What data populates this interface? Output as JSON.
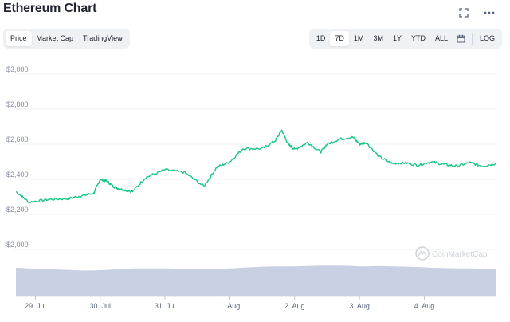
{
  "title": "Ethereum Chart",
  "icons": {
    "fullscreen": "fullscreen-icon",
    "more": "more-icon",
    "calendar": "calendar-icon"
  },
  "tabs": [
    {
      "label": "Price",
      "active": true
    },
    {
      "label": "Market Cap",
      "active": false
    },
    {
      "label": "TradingView",
      "active": false
    }
  ],
  "ranges": [
    {
      "label": "1D",
      "active": false
    },
    {
      "label": "7D",
      "active": true
    },
    {
      "label": "1M",
      "active": false
    },
    {
      "label": "3M",
      "active": false
    },
    {
      "label": "1Y",
      "active": false
    },
    {
      "label": "YTD",
      "active": false
    },
    {
      "label": "ALL",
      "active": false
    }
  ],
  "log_label": "LOG",
  "watermark": "CoinMarketCap",
  "colors": {
    "line": "#16c784",
    "volume": "#c9d0e4",
    "grid": "#eff2f5",
    "segment_bg": "#eff2f5"
  },
  "chart_data": {
    "type": "line",
    "y_ticks": [
      "$3,000",
      "$2,800",
      "$2,600",
      "$2,400",
      "$2,200",
      "$2,000"
    ],
    "ylim": [
      2000,
      3000
    ],
    "x_ticks": [
      "29. Jul",
      "30. Jul",
      "31. Jul",
      "1. Aug",
      "2. Aug",
      "3. Aug",
      "4. Aug"
    ],
    "x": [
      0,
      0.2,
      0.5,
      0.8,
      1.0,
      1.2,
      1.3,
      1.4,
      1.5,
      1.6,
      1.8,
      2.0,
      2.3,
      2.6,
      2.9,
      3.1,
      3.3,
      3.5,
      3.8,
      4.0,
      4.1,
      4.2,
      4.3,
      4.5,
      4.7,
      4.8,
      5.0,
      5.2,
      5.3,
      5.4,
      5.6,
      5.8,
      6.0,
      6.2,
      6.4,
      6.6,
      6.8,
      7.0,
      7.2,
      7.4
    ],
    "price": [
      2330,
      2270,
      2285,
      2290,
      2305,
      2320,
      2400,
      2390,
      2360,
      2345,
      2330,
      2410,
      2455,
      2440,
      2360,
      2470,
      2500,
      2575,
      2575,
      2620,
      2680,
      2600,
      2570,
      2610,
      2555,
      2600,
      2630,
      2640,
      2600,
      2610,
      2530,
      2490,
      2495,
      2480,
      2500,
      2485,
      2475,
      2495,
      2475,
      2490
    ],
    "volume_note": "relative volume bars",
    "volume": [
      0.82,
      0.8,
      0.78,
      0.76,
      0.74,
      0.74,
      0.75,
      0.76,
      0.77,
      0.78,
      0.8,
      0.8,
      0.8,
      0.79,
      0.79,
      0.79,
      0.8,
      0.82,
      0.85,
      0.86,
      0.86,
      0.86,
      0.86,
      0.87,
      0.88,
      0.88,
      0.88,
      0.87,
      0.86,
      0.86,
      0.87,
      0.86,
      0.85,
      0.84,
      0.82,
      0.81,
      0.8,
      0.8,
      0.79,
      0.78
    ],
    "grid": true
  }
}
